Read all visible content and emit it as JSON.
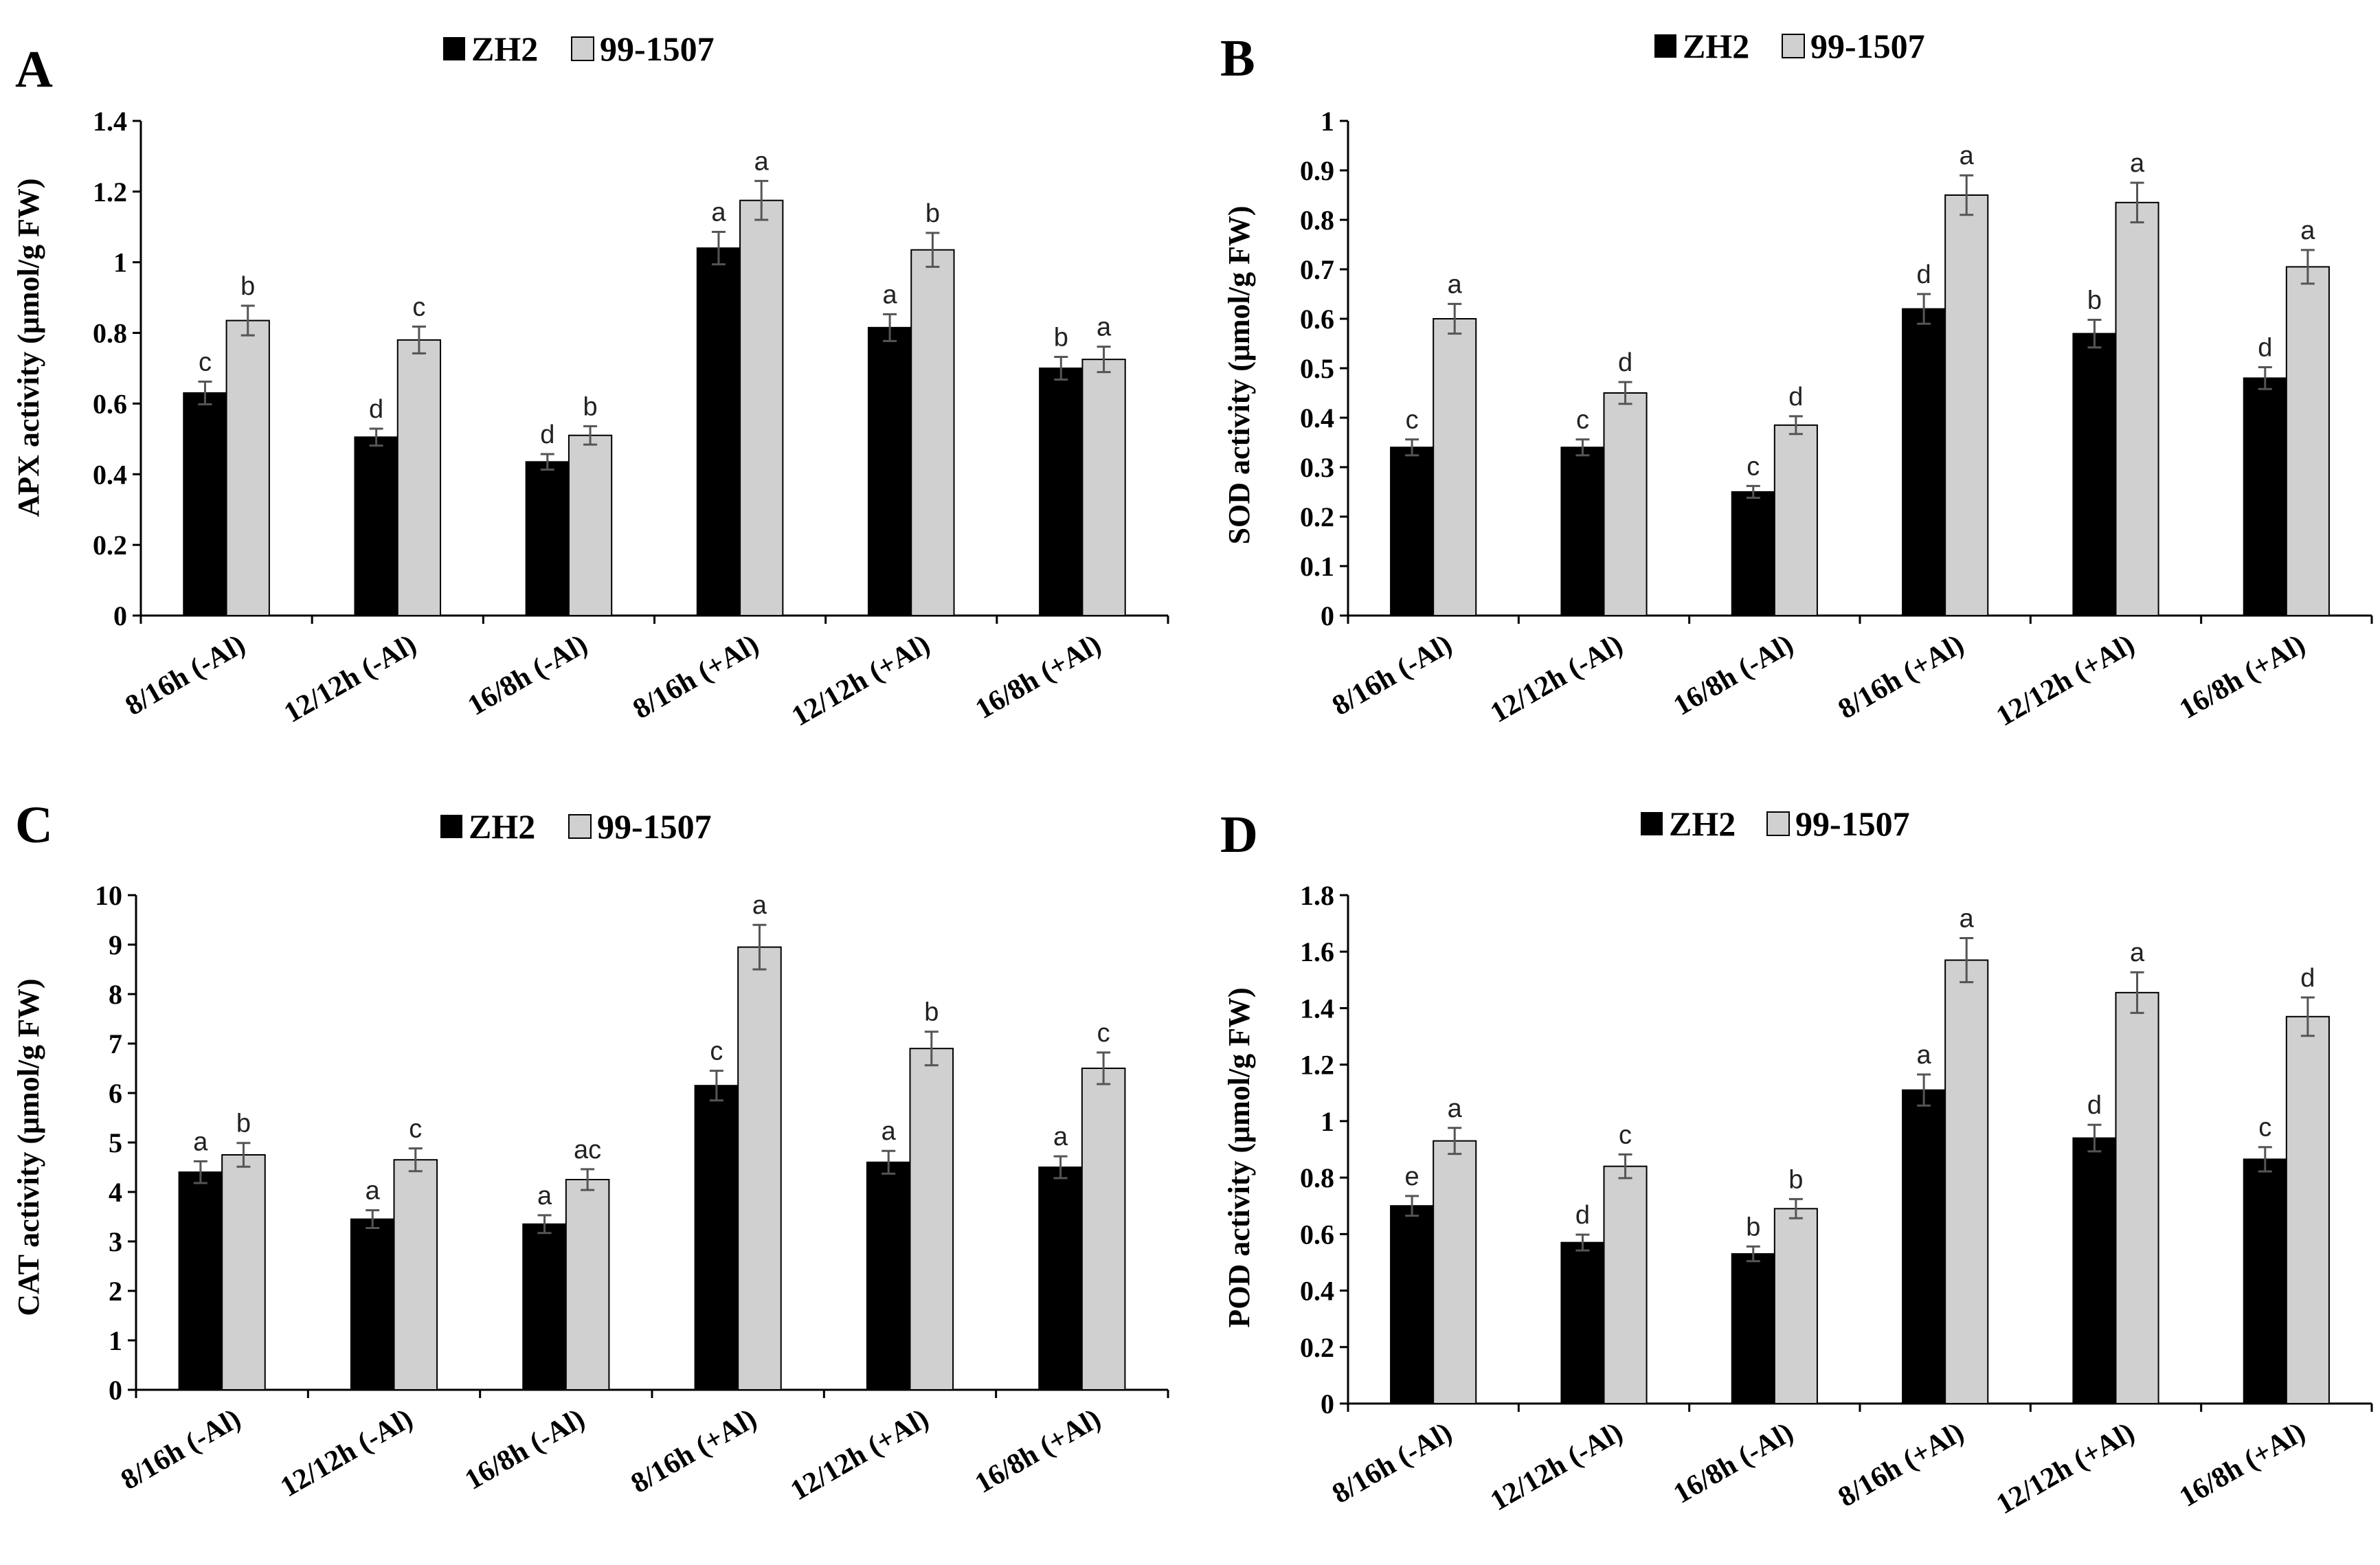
{
  "colors": {
    "series1": "#000000",
    "series2": "#d0d0d0",
    "axis": "#000000",
    "error": "#555555"
  },
  "chart_data": [
    {
      "type": "bar",
      "panel": "A",
      "title": "",
      "xlabel": "",
      "ylabel": "APX activity (μmol/g FW)",
      "categories": [
        "8/16h (-Al)",
        "12/12h (-Al)",
        "16/8h (-Al)",
        "8/16h (+Al)",
        "12/12h (+Al)",
        "16/8h (+Al)"
      ],
      "ylim": [
        0,
        1.4
      ],
      "yticks": [
        "0",
        "0.2",
        "0.4",
        "0.6",
        "0.8",
        "1",
        "1.2",
        "1.4"
      ],
      "legend": {
        "position": "top-center"
      },
      "grid": false,
      "series": [
        {
          "name": "ZH2",
          "values": [
            0.63,
            0.505,
            0.435,
            1.04,
            0.815,
            0.7
          ],
          "errors": [
            0.032,
            0.024,
            0.022,
            0.046,
            0.038,
            0.032
          ],
          "labels": [
            "c",
            "d",
            "d",
            "a",
            "a",
            "b"
          ]
        },
        {
          "name": "99-1507",
          "values": [
            0.835,
            0.78,
            0.51,
            1.175,
            1.035,
            0.725
          ],
          "errors": [
            0.042,
            0.038,
            0.026,
            0.055,
            0.048,
            0.036
          ],
          "labels": [
            "b",
            "c",
            "b",
            "a",
            "b",
            "a"
          ]
        }
      ]
    },
    {
      "type": "bar",
      "panel": "B",
      "title": "",
      "xlabel": "",
      "ylabel": "SOD activity (μmol/g FW)",
      "categories": [
        "8/16h (-Al)",
        "12/12h (-Al)",
        "16/8h (-Al)",
        "8/16h (+Al)",
        "12/12h (+Al)",
        "16/8h (+Al)"
      ],
      "ylim": [
        0,
        1
      ],
      "yticks": [
        "0",
        "0.1",
        "0.2",
        "0.3",
        "0.4",
        "0.5",
        "0.6",
        "0.7",
        "0.8",
        "0.9",
        "1"
      ],
      "legend": {
        "position": "top-center"
      },
      "grid": false,
      "series": [
        {
          "name": "ZH2",
          "values": [
            0.34,
            0.34,
            0.25,
            0.62,
            0.57,
            0.48
          ],
          "errors": [
            0.016,
            0.016,
            0.012,
            0.03,
            0.028,
            0.022
          ],
          "labels": [
            "c",
            "c",
            "c",
            "d",
            "b",
            "d"
          ]
        },
        {
          "name": "99-1507",
          "values": [
            0.6,
            0.45,
            0.385,
            0.85,
            0.835,
            0.705
          ],
          "errors": [
            0.03,
            0.022,
            0.018,
            0.04,
            0.04,
            0.034
          ],
          "labels": [
            "a",
            "d",
            "d",
            "a",
            "a",
            "a"
          ]
        }
      ]
    },
    {
      "type": "bar",
      "panel": "C",
      "title": "",
      "xlabel": "",
      "ylabel": "CAT activity (μmol/g FW)",
      "categories": [
        "8/16h (-Al)",
        "12/12h (-Al)",
        "16/8h (-Al)",
        "8/16h (+Al)",
        "12/12h (+Al)",
        "16/8h (+Al)"
      ],
      "ylim": [
        0,
        10
      ],
      "yticks": [
        "0",
        "1",
        "2",
        "3",
        "4",
        "5",
        "6",
        "7",
        "8",
        "9",
        "10"
      ],
      "legend": {
        "position": "top-center"
      },
      "grid": false,
      "series": [
        {
          "name": "ZH2",
          "values": [
            4.4,
            3.45,
            3.35,
            6.15,
            4.6,
            4.5
          ],
          "errors": [
            0.22,
            0.18,
            0.18,
            0.3,
            0.23,
            0.22
          ],
          "labels": [
            "a",
            "a",
            "a",
            "c",
            "a",
            "a"
          ]
        },
        {
          "name": "99-1507",
          "values": [
            4.75,
            4.65,
            4.25,
            8.95,
            6.9,
            6.5
          ],
          "errors": [
            0.24,
            0.23,
            0.21,
            0.45,
            0.34,
            0.32
          ],
          "labels": [
            "b",
            "c",
            "ac",
            "a",
            "b",
            "c"
          ]
        }
      ]
    },
    {
      "type": "bar",
      "panel": "D",
      "title": "",
      "xlabel": "",
      "ylabel": "POD activity (μmol/g FW)",
      "categories": [
        "8/16h (-Al)",
        "12/12h (-Al)",
        "16/8h (-Al)",
        "8/16h (+Al)",
        "12/12h (+Al)",
        "16/8h (+Al)"
      ],
      "ylim": [
        0,
        1.8
      ],
      "yticks": [
        "0",
        "0.2",
        "0.4",
        "0.6",
        "0.8",
        "1",
        "1.2",
        "1.4",
        "1.6",
        "1.8"
      ],
      "legend": {
        "position": "top-center"
      },
      "grid": false,
      "series": [
        {
          "name": "ZH2",
          "values": [
            0.7,
            0.57,
            0.53,
            1.11,
            0.94,
            0.865
          ],
          "errors": [
            0.035,
            0.028,
            0.026,
            0.055,
            0.047,
            0.043
          ],
          "labels": [
            "e",
            "d",
            "b",
            "a",
            "d",
            "c"
          ]
        },
        {
          "name": "99-1507",
          "values": [
            0.93,
            0.84,
            0.69,
            1.57,
            1.455,
            1.37
          ],
          "errors": [
            0.046,
            0.042,
            0.034,
            0.078,
            0.072,
            0.068
          ],
          "labels": [
            "a",
            "c",
            "b",
            "a",
            "a",
            "d"
          ]
        }
      ]
    }
  ]
}
